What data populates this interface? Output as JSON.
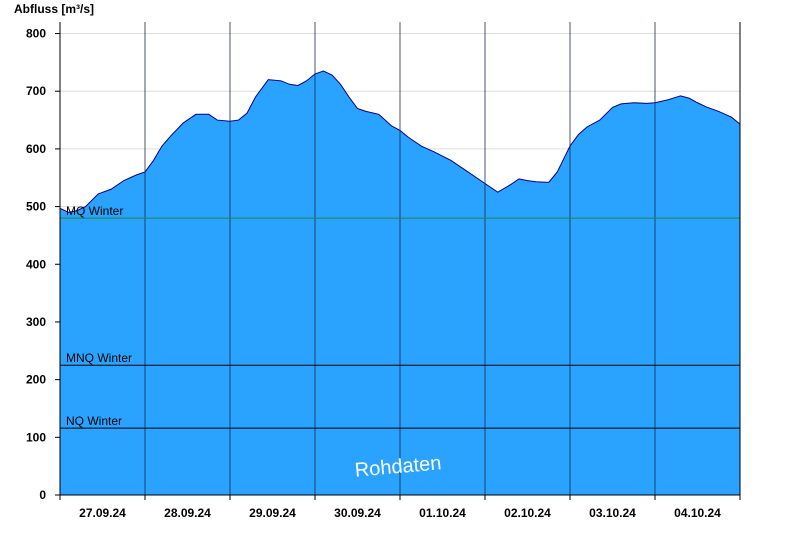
{
  "chart_data": {
    "type": "area",
    "ylabel": "Abfluss [m³/s]",
    "ylim": [
      0,
      820
    ],
    "yticks": [
      0,
      100,
      200,
      300,
      400,
      500,
      600,
      700,
      800
    ],
    "xlim": [
      0,
      8
    ],
    "day_labels": [
      "27.09.24",
      "28.09.24",
      "29.09.24",
      "30.09.24",
      "01.10.24",
      "02.10.24",
      "03.10.24",
      "04.10.24"
    ],
    "x": [
      0,
      0.1,
      0.2,
      0.3,
      0.45,
      0.6,
      0.75,
      0.9,
      1.0,
      1.1,
      1.2,
      1.3,
      1.45,
      1.6,
      1.75,
      1.85,
      2.0,
      2.1,
      2.2,
      2.3,
      2.45,
      2.6,
      2.7,
      2.8,
      2.9,
      3.0,
      3.1,
      3.2,
      3.3,
      3.4,
      3.5,
      3.6,
      3.75,
      3.9,
      4.0,
      4.1,
      4.25,
      4.4,
      4.6,
      4.8,
      5.0,
      5.15,
      5.3,
      5.4,
      5.5,
      5.6,
      5.75,
      5.85,
      5.9,
      6.0,
      6.1,
      6.2,
      6.35,
      6.5,
      6.6,
      6.75,
      6.9,
      7.0,
      7.15,
      7.3,
      7.4,
      7.5,
      7.6,
      7.75,
      7.9,
      8.0
    ],
    "values": [
      497,
      490,
      493,
      500,
      522,
      530,
      545,
      555,
      560,
      580,
      605,
      622,
      645,
      660,
      660,
      650,
      648,
      650,
      662,
      690,
      720,
      718,
      712,
      710,
      718,
      730,
      735,
      728,
      712,
      690,
      670,
      665,
      660,
      640,
      632,
      620,
      605,
      595,
      580,
      560,
      540,
      525,
      538,
      548,
      545,
      543,
      542,
      560,
      575,
      605,
      625,
      638,
      650,
      672,
      678,
      680,
      679,
      680,
      685,
      692,
      688,
      680,
      673,
      665,
      655,
      643
    ],
    "reference_lines": [
      {
        "label": "MQ Winter",
        "value": 480,
        "color": "#1a8a3a"
      },
      {
        "label": "MNQ Winter",
        "value": 225,
        "color": "#000000"
      },
      {
        "label": "NQ Winter",
        "value": 116,
        "color": "#000000"
      }
    ],
    "fill_color": "#29a3ff",
    "line_color": "#00008b",
    "watermark": "Rohdaten",
    "grid": true
  }
}
